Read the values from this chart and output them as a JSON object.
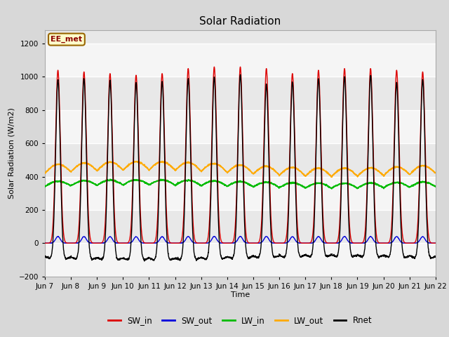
{
  "title": "Solar Radiation",
  "ylabel": "Solar Radiation (W/m2)",
  "xlabel": "Time",
  "ylim": [
    -200,
    1280
  ],
  "yticks": [
    -200,
    0,
    200,
    400,
    600,
    800,
    1000,
    1200
  ],
  "start_day": 7,
  "num_days": 15,
  "points_per_day": 144,
  "sw_in_color": "#dd0000",
  "sw_out_color": "#0000dd",
  "lw_in_color": "#00bb00",
  "lw_out_color": "#ffaa00",
  "rnet_color": "#000000",
  "annotation_text": "EE_met",
  "annotation_bg": "#ffffcc",
  "annotation_border": "#996600",
  "bg_color": "#d8d8d8",
  "plot_bg": "#e8e8e8",
  "grid_color": "#ffffff",
  "xticklabels": [
    "Jun 7",
    "Jun 8",
    "Jun 9",
    "Jun 10",
    "Jun 11",
    "Jun 12",
    "Jun 13",
    "Jun 14",
    "Jun 15",
    "Jun 16",
    "Jun 17",
    "Jun 18",
    "Jun 19",
    "Jun 20",
    "Jun 21",
    "Jun 22"
  ],
  "sw_in_peaks": [
    1040,
    1030,
    1020,
    1010,
    1020,
    1050,
    1060,
    1060,
    1050,
    1020,
    1040,
    1050,
    1050,
    1040,
    1030
  ],
  "rnet_peaks": [
    1085,
    1095,
    1085,
    1075,
    1080,
    1095,
    1100,
    1110,
    1050,
    1060,
    1080,
    1095,
    1100,
    1060,
    1080
  ],
  "lw_out_base": 420,
  "lw_in_base": 340,
  "lw_out_day_bump": 50,
  "lw_in_day_bump": 30,
  "rnet_trough": -100,
  "figwidth": 6.4,
  "figheight": 4.8,
  "dpi": 100
}
